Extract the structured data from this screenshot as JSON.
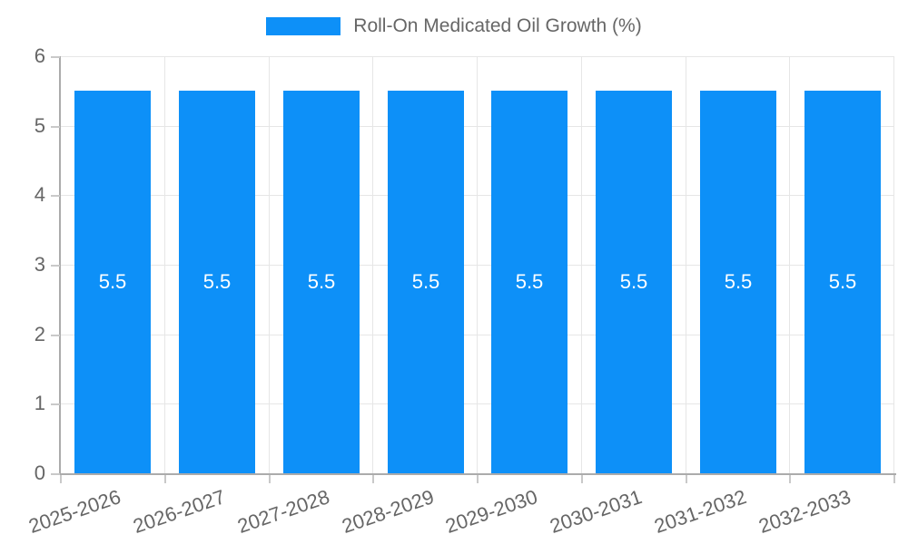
{
  "legend": {
    "label": "Roll-On Medicated Oil Growth (%)"
  },
  "chart_data": {
    "type": "bar",
    "title": "Roll-On Medicated Oil Growth (%)",
    "categories": [
      "2025-2026",
      "2026-2027",
      "2027-2028",
      "2028-2029",
      "2029-2030",
      "2030-2031",
      "2031-2032",
      "2032-2033"
    ],
    "values": [
      5.5,
      5.5,
      5.5,
      5.5,
      5.5,
      5.5,
      5.5,
      5.5
    ],
    "bar_labels": [
      "5.5",
      "5.5",
      "5.5",
      "5.5",
      "5.5",
      "5.5",
      "5.5",
      "5.5"
    ],
    "xlabel": "",
    "ylabel": "",
    "ylim": [
      0,
      6
    ],
    "yticks": [
      0,
      1,
      2,
      3,
      4,
      5,
      6
    ],
    "grid": true,
    "legend_position": "top",
    "colors": {
      "bar": "#0d90f8",
      "bar_label": "#ffffff",
      "legend_text": "#666666",
      "tick_text": "#666666",
      "grid_line": "#e6e6e6",
      "axis_line": "#ababab",
      "tick_mark": "#c9c9c9",
      "background": "#ffffff"
    }
  }
}
